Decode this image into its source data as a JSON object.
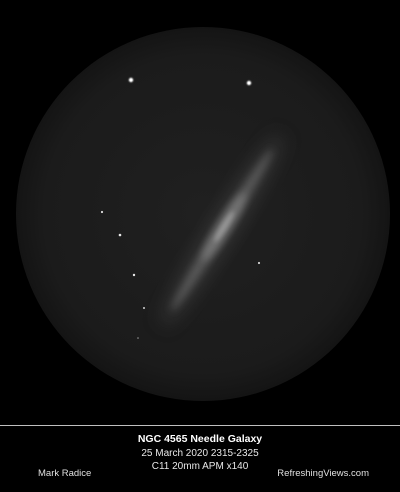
{
  "caption": {
    "title": "NGC 4565 Needle Galaxy",
    "date_time": "25 March 2020 2315-2325",
    "equipment": "C11  20mm APM  x140"
  },
  "credits": {
    "author": "Mark Radice",
    "website": "RefreshingViews.com"
  },
  "colors": {
    "background": "#000000",
    "eyepiece_field": "#1c1c1c",
    "galaxy": "#8c8c8c",
    "stars": "#ffffff",
    "text": "#e8e8e8"
  },
  "icons": [
    "eyepiece-field",
    "galaxy-needle",
    "star"
  ]
}
